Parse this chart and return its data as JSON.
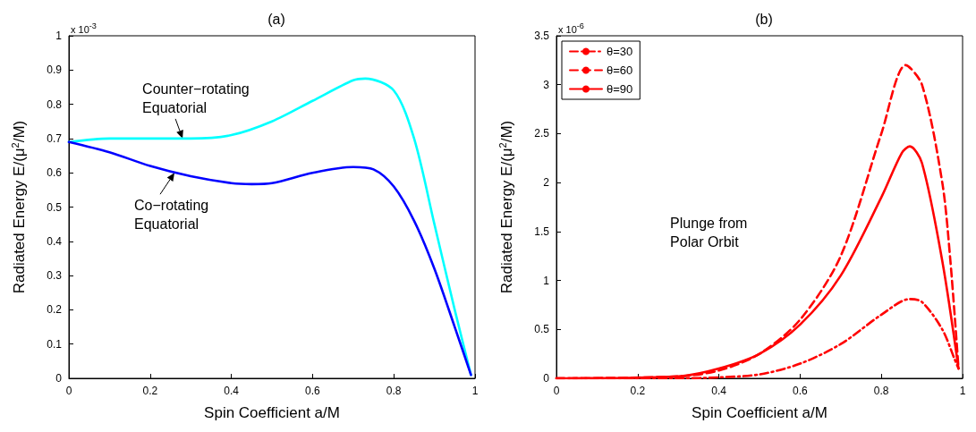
{
  "chart_data": [
    {
      "type": "line",
      "title": "(a)",
      "xlabel": "Spin Coefficient a/M",
      "ylabel": "Radiated Energy E/(μ$^{2}$/M)",
      "xlim": [
        0,
        1
      ],
      "ylim": [
        0,
        1
      ],
      "xticks": [
        0,
        0.2,
        0.4,
        0.6,
        0.8,
        1
      ],
      "yticks": [
        0,
        0.1,
        0.2,
        0.3,
        0.4,
        0.5,
        0.6,
        0.7,
        0.8,
        0.9,
        1
      ],
      "grid": false,
      "legend": false,
      "marker": "none",
      "line_style": "solid",
      "annotations": [
        "x 10$^{-3}$",
        {
          "text": "Counter−rotating\nEquatorial",
          "x": 0.28,
          "y": 0.7
        },
        {
          "text": "Co−rotating\nEquatorial",
          "x": 0.26,
          "y": 0.6
        }
      ],
      "series": [
        {
          "color": "#00ffff",
          "x": [
            0,
            0.1,
            0.2,
            0.3,
            0.4,
            0.5,
            0.6,
            0.7,
            0.73,
            0.8,
            0.85,
            0.9,
            0.95,
            0.99
          ],
          "values": [
            0.69,
            0.7,
            0.7,
            0.7,
            0.71,
            0.75,
            0.81,
            0.87,
            0.875,
            0.84,
            0.7,
            0.45,
            0.2,
            0.01
          ]
        },
        {
          "color": "#0000ff",
          "x": [
            0,
            0.1,
            0.2,
            0.3,
            0.4,
            0.45,
            0.5,
            0.6,
            0.7,
            0.75,
            0.8,
            0.85,
            0.9,
            0.95,
            0.99
          ],
          "values": [
            0.69,
            0.66,
            0.62,
            0.59,
            0.57,
            0.567,
            0.57,
            0.6,
            0.617,
            0.61,
            0.56,
            0.46,
            0.32,
            0.15,
            0.01
          ]
        }
      ]
    },
    {
      "type": "line",
      "title": "(b)",
      "xlabel": "Spin Coefficient a/M",
      "ylabel": "Radiated Energy E/(μ$^{2}$/M)",
      "xlim": [
        0,
        1
      ],
      "ylim": [
        0,
        3.5
      ],
      "xticks": [
        0,
        0.2,
        0.4,
        0.6,
        0.8,
        1
      ],
      "yticks": [
        0,
        0.5,
        1,
        1.5,
        2,
        2.5,
        3,
        3.5
      ],
      "grid": false,
      "legend": "top left",
      "marker": "none",
      "annotations": [
        "x 10$^{-6}$",
        "Plunge from\nPolar Orbit"
      ],
      "series": [
        {
          "name": "θ=30",
          "color": "#ff0000",
          "line_style": "dashdot",
          "x": [
            0,
            0.3,
            0.4,
            0.5,
            0.6,
            0.7,
            0.8,
            0.87,
            0.9,
            0.95,
            0.98,
            0.99
          ],
          "values": [
            0,
            0,
            0.01,
            0.04,
            0.15,
            0.35,
            0.65,
            0.81,
            0.78,
            0.5,
            0.2,
            0.1
          ]
        },
        {
          "name": "θ=60",
          "color": "#ff0000",
          "line_style": "dashed",
          "x": [
            0,
            0.3,
            0.4,
            0.5,
            0.6,
            0.7,
            0.8,
            0.86,
            0.9,
            0.95,
            0.97,
            0.99
          ],
          "values": [
            0,
            0.02,
            0.08,
            0.25,
            0.6,
            1.25,
            2.5,
            3.2,
            3,
            2,
            1.2,
            0.1
          ]
        },
        {
          "name": "θ=90",
          "color": "#ff0000",
          "line_style": "solid",
          "x": [
            0,
            0.3,
            0.4,
            0.5,
            0.6,
            0.7,
            0.8,
            0.85,
            0.87,
            0.9,
            0.95,
            0.99
          ],
          "values": [
            0,
            0.02,
            0.1,
            0.25,
            0.55,
            1.05,
            1.85,
            2.3,
            2.37,
            2.2,
            1.2,
            0.1
          ]
        }
      ]
    }
  ]
}
